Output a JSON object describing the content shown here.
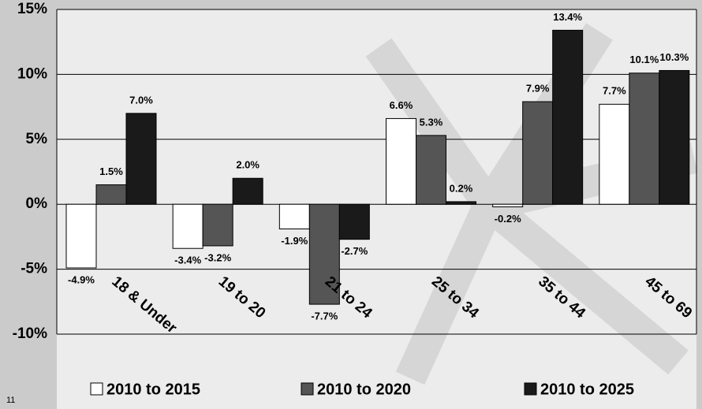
{
  "chart_data": {
    "type": "bar",
    "categories": [
      "18 & Under",
      "19 to 20",
      "21 to 24",
      "25 to 34",
      "35 to 44",
      "45 to 69"
    ],
    "series": [
      {
        "name": "2010 to 2015",
        "color": "#ffffff",
        "values": [
          -4.9,
          -3.4,
          -1.9,
          6.6,
          -0.2,
          7.7
        ],
        "value_labels": [
          "-4.9%",
          "-3.4%",
          "-1.9%",
          "6.6%",
          "-0.2%",
          "7.7%"
        ]
      },
      {
        "name": "2010 to 2020",
        "color": "#555555",
        "values": [
          1.5,
          -3.2,
          -7.7,
          5.3,
          7.9,
          10.1
        ],
        "value_labels": [
          "1.5%",
          "-3.2%",
          "-7.7%",
          "5.3%",
          "7.9%",
          "10.1%"
        ]
      },
      {
        "name": "2010 to 2025",
        "color": "#1a1a1a",
        "values": [
          7.0,
          2.0,
          -2.7,
          0.2,
          13.4,
          10.3
        ],
        "value_labels": [
          "7.0%",
          "2.0%",
          "-2.7%",
          "0.2%",
          "13.4%",
          "10.3%"
        ]
      }
    ],
    "ylim": [
      -10,
      15
    ],
    "yticks": [
      {
        "value": -10,
        "label": "-10%"
      },
      {
        "value": -5,
        "label": "-5%"
      },
      {
        "value": 0,
        "label": "0%"
      },
      {
        "value": 5,
        "label": "5%"
      },
      {
        "value": 10,
        "label": "10%"
      },
      {
        "value": 15,
        "label": "15%"
      }
    ],
    "grid": true
  },
  "page_number": "11"
}
